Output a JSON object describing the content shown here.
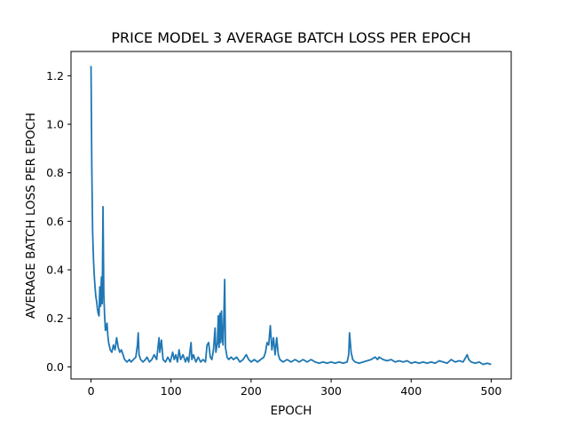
{
  "chart_data": {
    "type": "line",
    "title": "PRICE MODEL 3 AVERAGE BATCH LOSS PER EPOCH",
    "xlabel": "EPOCH",
    "ylabel": "AVERAGE BATCH LOSS PER EPOCH",
    "xlim": [
      -25,
      525
    ],
    "ylim": [
      -0.05,
      1.3
    ],
    "xticks": [
      0,
      100,
      200,
      300,
      400,
      500
    ],
    "yticks": [
      0.0,
      0.2,
      0.4,
      0.6,
      0.8,
      1.0,
      1.2
    ],
    "grid": false,
    "series": [
      {
        "color": "#1f77b4",
        "points": [
          [
            0,
            1.24
          ],
          [
            1,
            0.82
          ],
          [
            2,
            0.56
          ],
          [
            3,
            0.45
          ],
          [
            4,
            0.38
          ],
          [
            5,
            0.33
          ],
          [
            6,
            0.29
          ],
          [
            7,
            0.27
          ],
          [
            8,
            0.24
          ],
          [
            9,
            0.22
          ],
          [
            10,
            0.21
          ],
          [
            11,
            0.33
          ],
          [
            12,
            0.25
          ],
          [
            13,
            0.37
          ],
          [
            14,
            0.26
          ],
          [
            15,
            0.66
          ],
          [
            16,
            0.3
          ],
          [
            17,
            0.21
          ],
          [
            18,
            0.15
          ],
          [
            19,
            0.16
          ],
          [
            20,
            0.18
          ],
          [
            21,
            0.13
          ],
          [
            22,
            0.1
          ],
          [
            24,
            0.07
          ],
          [
            26,
            0.06
          ],
          [
            28,
            0.09
          ],
          [
            30,
            0.07
          ],
          [
            32,
            0.12
          ],
          [
            34,
            0.08
          ],
          [
            36,
            0.06
          ],
          [
            38,
            0.07
          ],
          [
            40,
            0.05
          ],
          [
            42,
            0.03
          ],
          [
            45,
            0.02
          ],
          [
            48,
            0.03
          ],
          [
            50,
            0.02
          ],
          [
            53,
            0.03
          ],
          [
            56,
            0.04
          ],
          [
            58,
            0.09
          ],
          [
            59,
            0.14
          ],
          [
            60,
            0.05
          ],
          [
            62,
            0.03
          ],
          [
            65,
            0.02
          ],
          [
            68,
            0.03
          ],
          [
            70,
            0.04
          ],
          [
            73,
            0.02
          ],
          [
            76,
            0.03
          ],
          [
            79,
            0.05
          ],
          [
            82,
            0.03
          ],
          [
            85,
            0.12
          ],
          [
            86,
            0.06
          ],
          [
            88,
            0.11
          ],
          [
            90,
            0.03
          ],
          [
            93,
            0.02
          ],
          [
            96,
            0.04
          ],
          [
            99,
            0.02
          ],
          [
            102,
            0.06
          ],
          [
            104,
            0.03
          ],
          [
            106,
            0.05
          ],
          [
            108,
            0.02
          ],
          [
            110,
            0.07
          ],
          [
            112,
            0.03
          ],
          [
            115,
            0.05
          ],
          [
            118,
            0.02
          ],
          [
            120,
            0.04
          ],
          [
            122,
            0.02
          ],
          [
            125,
            0.1
          ],
          [
            126,
            0.03
          ],
          [
            128,
            0.05
          ],
          [
            131,
            0.02
          ],
          [
            134,
            0.04
          ],
          [
            137,
            0.02
          ],
          [
            140,
            0.03
          ],
          [
            143,
            0.02
          ],
          [
            145,
            0.09
          ],
          [
            147,
            0.1
          ],
          [
            149,
            0.04
          ],
          [
            151,
            0.03
          ],
          [
            153,
            0.07
          ],
          [
            155,
            0.16
          ],
          [
            156,
            0.06
          ],
          [
            158,
            0.1
          ],
          [
            159,
            0.21
          ],
          [
            160,
            0.08
          ],
          [
            161,
            0.22
          ],
          [
            162,
            0.1
          ],
          [
            163,
            0.23
          ],
          [
            164,
            0.12
          ],
          [
            165,
            0.09
          ],
          [
            166,
            0.21
          ],
          [
            167,
            0.36
          ],
          [
            168,
            0.08
          ],
          [
            170,
            0.04
          ],
          [
            172,
            0.03
          ],
          [
            175,
            0.04
          ],
          [
            178,
            0.03
          ],
          [
            182,
            0.04
          ],
          [
            186,
            0.02
          ],
          [
            190,
            0.03
          ],
          [
            194,
            0.05
          ],
          [
            197,
            0.03
          ],
          [
            200,
            0.02
          ],
          [
            204,
            0.03
          ],
          [
            208,
            0.02
          ],
          [
            212,
            0.03
          ],
          [
            216,
            0.04
          ],
          [
            218,
            0.06
          ],
          [
            220,
            0.1
          ],
          [
            222,
            0.09
          ],
          [
            224,
            0.17
          ],
          [
            226,
            0.07
          ],
          [
            228,
            0.12
          ],
          [
            230,
            0.05
          ],
          [
            232,
            0.12
          ],
          [
            234,
            0.05
          ],
          [
            236,
            0.03
          ],
          [
            240,
            0.02
          ],
          [
            245,
            0.03
          ],
          [
            250,
            0.02
          ],
          [
            255,
            0.03
          ],
          [
            260,
            0.02
          ],
          [
            265,
            0.03
          ],
          [
            270,
            0.02
          ],
          [
            275,
            0.03
          ],
          [
            280,
            0.02
          ],
          [
            285,
            0.015
          ],
          [
            290,
            0.02
          ],
          [
            295,
            0.015
          ],
          [
            300,
            0.02
          ],
          [
            305,
            0.015
          ],
          [
            310,
            0.02
          ],
          [
            315,
            0.015
          ],
          [
            320,
            0.02
          ],
          [
            322,
            0.05
          ],
          [
            323,
            0.14
          ],
          [
            325,
            0.06
          ],
          [
            327,
            0.03
          ],
          [
            330,
            0.02
          ],
          [
            335,
            0.015
          ],
          [
            340,
            0.02
          ],
          [
            345,
            0.025
          ],
          [
            350,
            0.03
          ],
          [
            355,
            0.04
          ],
          [
            358,
            0.03
          ],
          [
            360,
            0.04
          ],
          [
            365,
            0.03
          ],
          [
            370,
            0.025
          ],
          [
            375,
            0.03
          ],
          [
            380,
            0.02
          ],
          [
            385,
            0.025
          ],
          [
            390,
            0.02
          ],
          [
            395,
            0.025
          ],
          [
            400,
            0.015
          ],
          [
            405,
            0.02
          ],
          [
            410,
            0.015
          ],
          [
            415,
            0.02
          ],
          [
            420,
            0.015
          ],
          [
            425,
            0.02
          ],
          [
            430,
            0.015
          ],
          [
            435,
            0.025
          ],
          [
            440,
            0.02
          ],
          [
            445,
            0.015
          ],
          [
            450,
            0.03
          ],
          [
            455,
            0.02
          ],
          [
            460,
            0.025
          ],
          [
            465,
            0.02
          ],
          [
            470,
            0.05
          ],
          [
            472,
            0.03
          ],
          [
            475,
            0.02
          ],
          [
            480,
            0.015
          ],
          [
            485,
            0.02
          ],
          [
            490,
            0.01
          ],
          [
            495,
            0.015
          ],
          [
            500,
            0.01
          ]
        ]
      }
    ]
  }
}
